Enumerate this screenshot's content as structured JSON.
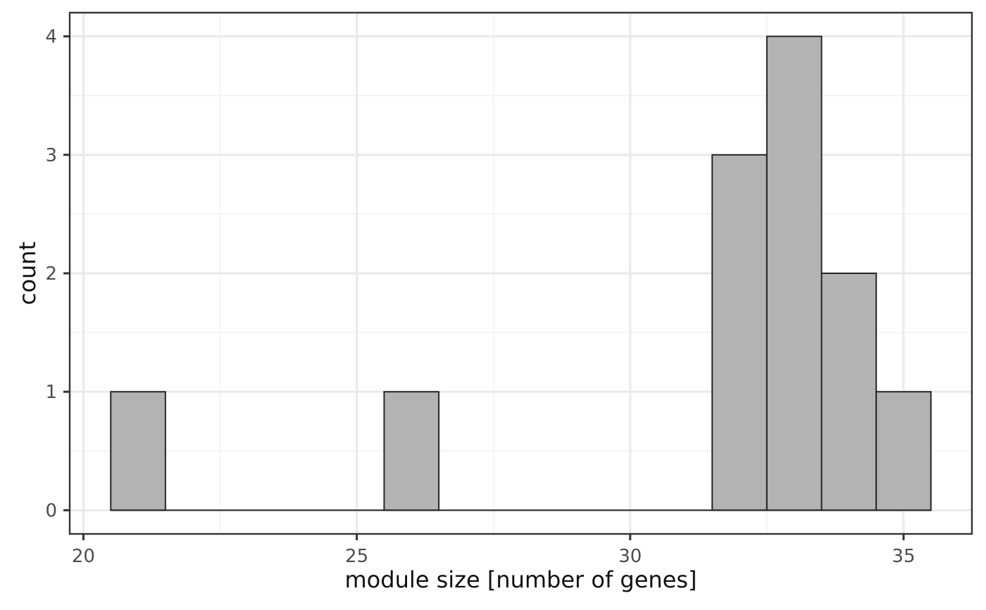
{
  "chart_data": {
    "type": "bar",
    "subtype": "histogram",
    "title": "",
    "xlabel": "module size [number of genes]",
    "ylabel": "count",
    "x_ticks": [
      20,
      25,
      30,
      35
    ],
    "y_ticks": [
      0,
      1,
      2,
      3,
      4
    ],
    "x_minor_gridlines": [
      22.5,
      27.5,
      32.5
    ],
    "y_minor_gridlines": [
      0.5,
      1.5,
      2.5,
      3.5
    ],
    "xlim": [
      19.75,
      36.25
    ],
    "ylim": [
      -0.2,
      4.2
    ],
    "binwidth": 1,
    "bin_range": [
      20.5,
      35.5
    ],
    "bins": [
      {
        "x_start": 20.5,
        "x_end": 21.5,
        "count": 1
      },
      {
        "x_start": 25.5,
        "x_end": 26.5,
        "count": 1
      },
      {
        "x_start": 31.5,
        "x_end": 32.5,
        "count": 3
      },
      {
        "x_start": 32.5,
        "x_end": 33.5,
        "count": 4
      },
      {
        "x_start": 33.5,
        "x_end": 34.5,
        "count": 2
      },
      {
        "x_start": 34.5,
        "x_end": 35.5,
        "count": 1
      }
    ],
    "grid": true,
    "legend_position": "none"
  },
  "style": {
    "background": "#ffffff",
    "panel_background": "#ffffff",
    "panel_border_color": "#333333",
    "grid_major_color": "#e9e9e9",
    "grid_minor_color": "#f2f2f2",
    "bar_fill": "#b3b3b3",
    "bar_stroke": "#262626",
    "tick_mark_color": "#333333",
    "tick_label_color": "#4d4d4d",
    "axis_title_color": "#111111"
  }
}
